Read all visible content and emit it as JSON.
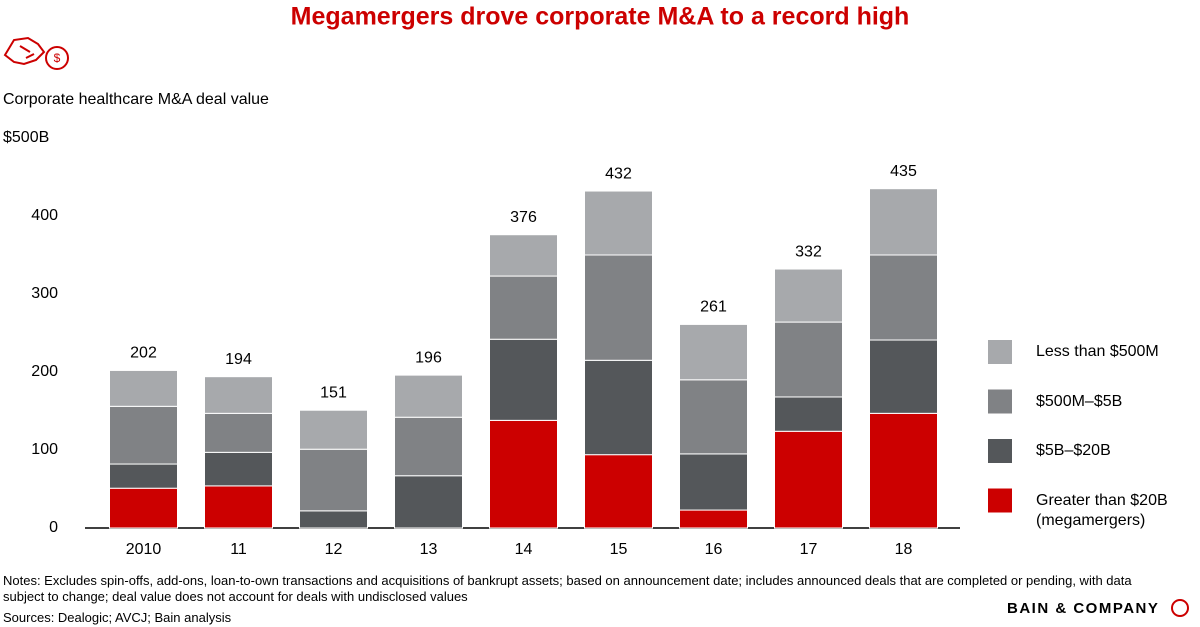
{
  "chart_data": {
    "type": "stacked_bar",
    "title": "Megamergers drove corporate M&A to a record high",
    "subtitle": "Corporate healthcare M&A deal value",
    "categories": [
      "2010",
      "11",
      "12",
      "13",
      "14",
      "15",
      "16",
      "17",
      "18"
    ],
    "series": [
      {
        "name": "Greater than $20B (megamergers)",
        "color": "#cc0000",
        "values": [
          51,
          54,
          0,
          0,
          138,
          94,
          23,
          124,
          147
        ]
      },
      {
        "name": "$5B–$20B",
        "color": "#54575a",
        "values": [
          31,
          43,
          22,
          67,
          104,
          121,
          72,
          44,
          94
        ]
      },
      {
        "name": "$500M–$5B",
        "color": "#808285",
        "values": [
          74,
          50,
          79,
          75,
          81,
          135,
          95,
          96,
          109
        ]
      },
      {
        "name": "Less than $500M",
        "color": "#a7a9ac",
        "values": [
          46,
          47,
          50,
          54,
          53,
          82,
          71,
          68,
          85
        ]
      }
    ],
    "totals": [
      202,
      194,
      151,
      196,
      376,
      432,
      261,
      332,
      435
    ],
    "ylim": [
      0,
      500
    ],
    "yticks": [
      0,
      100,
      200,
      300,
      400,
      {
        "value": 500,
        "label": "$500B"
      }
    ],
    "notes": "Notes: Excludes spin-offs, add-ons, loan-to-own transactions and acquisitions of bankrupt assets; based on announcement date; includes announced deals that are completed or pending, with data subject to change; deal value does not account for deals with undisclosed values",
    "sources": "Sources: Dealogic; AVCJ; Bain analysis",
    "brand": "BAIN & COMPANY"
  }
}
